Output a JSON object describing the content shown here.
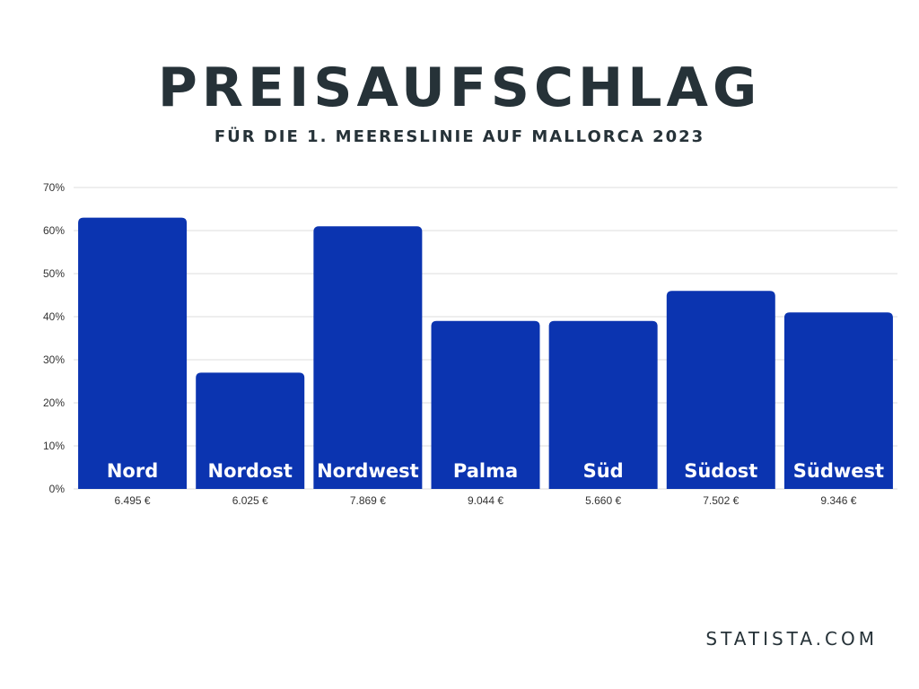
{
  "title": "PREISAUFSCHLAG",
  "subtitle": "FÜR DIE 1. MEERESLINIE AUF MALLORCA 2023",
  "source": "STATISTA.COM",
  "colors": {
    "bar": "#0B34B0",
    "text": "#263238",
    "grid": "#dddddd"
  },
  "chart_data": {
    "type": "bar",
    "categories": [
      "Nord",
      "Nordost",
      "Nordwest",
      "Palma",
      "Süd",
      "Südost",
      "Südwest"
    ],
    "values": [
      63,
      27,
      61,
      39,
      39,
      46,
      41
    ],
    "bar_sublabels": [
      "6.495 €",
      "6.025 €",
      "7.869 €",
      "9.044 €",
      "5.660 €",
      "7.502 €",
      "9.346 €"
    ],
    "y_ticks": [
      "0%",
      "10%",
      "20%",
      "30%",
      "40%",
      "50%",
      "60%",
      "70%"
    ],
    "ylim": [
      0,
      70
    ],
    "unit": "%",
    "grid": true,
    "xlabel": "",
    "ylabel": ""
  }
}
